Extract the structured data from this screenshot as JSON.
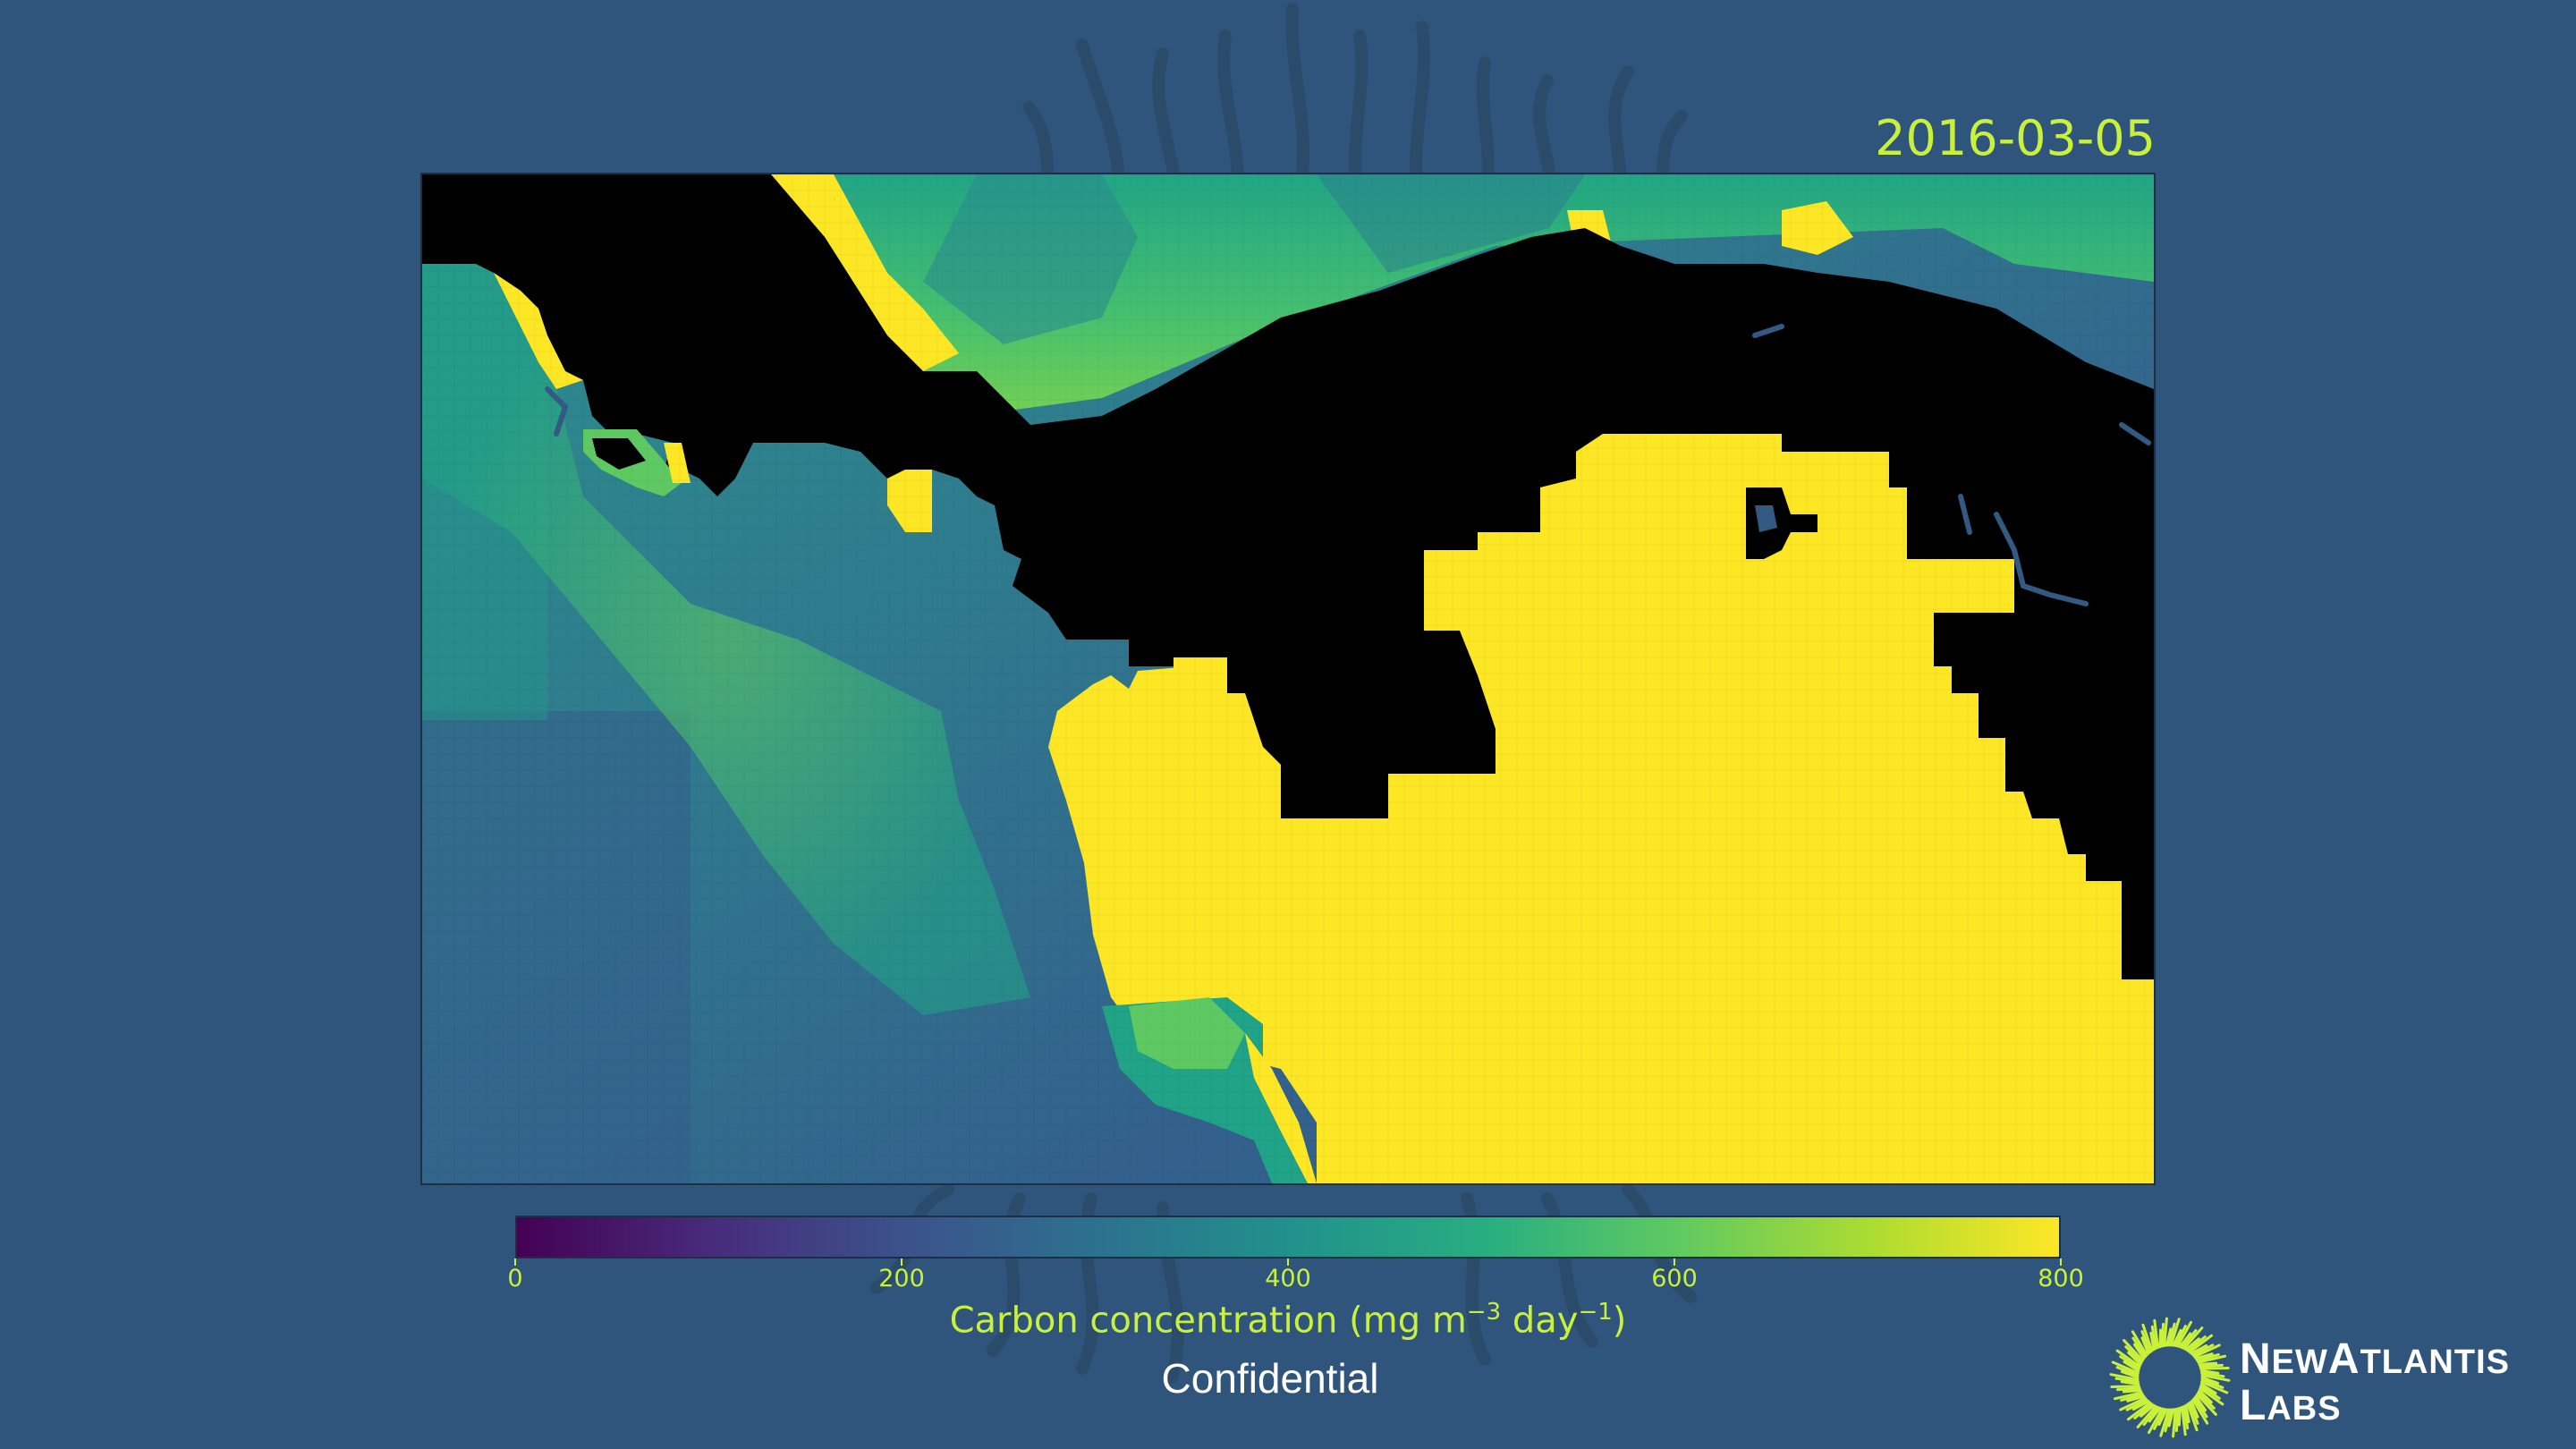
{
  "date": "2016-03-05",
  "colorbar": {
    "title_main": "Carbon concentration (mg m",
    "title_exp1": "−3",
    "title_mid": " day",
    "title_exp2": "−1",
    "title_end": ")",
    "min": 0,
    "max": 800,
    "ticks": [
      "0",
      "200",
      "400",
      "600",
      "800"
    ],
    "colormap": "viridis"
  },
  "footer": {
    "confidential": "Confidential"
  },
  "logo": {
    "line1_cap1": "N",
    "line1_a": "EW",
    "line1_cap2": "A",
    "line1_b": "TLANTIS",
    "line2_cap": "L",
    "line2_rest": "ABS"
  },
  "colors": {
    "background": "#30557c",
    "accent": "#c9f03a",
    "land": "#000000",
    "saturated": "#fde725"
  }
}
